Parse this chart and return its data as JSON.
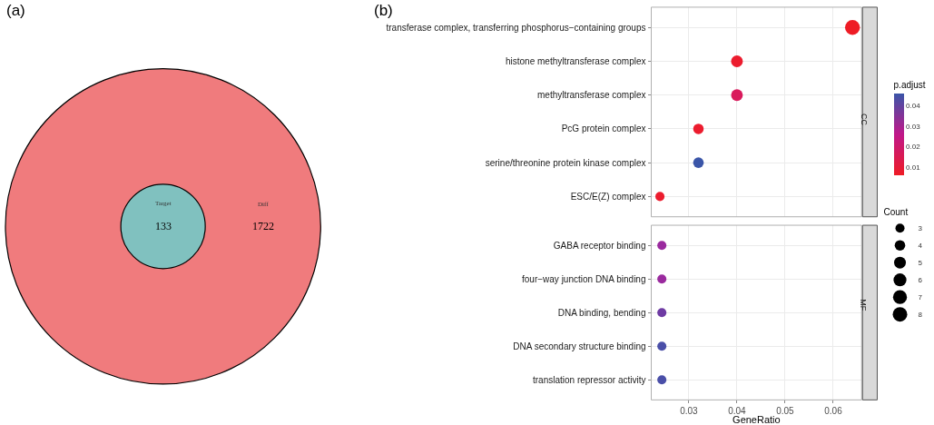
{
  "chart_data": [
    {
      "type": "other",
      "title": "(a)",
      "categories": [
        "Diff",
        "Target"
      ],
      "values": [
        1722,
        133
      ],
      "colors": [
        "#f07b7d",
        "#80c1bf"
      ],
      "data_labels": true
    },
    {
      "type": "bubble",
      "title": "(b)",
      "orientation": "horizontal",
      "categories": [
        "transferase complex, transferring phosphorus−containing groups",
        "histone methyltransferase complex",
        "methyltransferase complex",
        "PcG protein complex",
        "serine/threonine protein kinase complex",
        "ESC/E(Z) complex",
        "GABA receptor binding",
        "four−way junction DNA binding",
        "DNA binding, bending",
        "DNA secondary structure binding",
        "translation repressor activity"
      ],
      "series": [
        {
          "name": "CC",
          "values": [
            0.064,
            0.04,
            0.04,
            0.032,
            0.032,
            0.024,
            null,
            null,
            null,
            null,
            null
          ],
          "sizes": [
            8,
            5,
            5,
            4,
            4,
            3,
            null,
            null,
            null,
            null,
            null
          ],
          "colors": [
            "#ee1c25",
            "#ec1c2e",
            "#d91a5c",
            "#ec1c2e",
            "#3a55a8",
            "#ec1c2e",
            null,
            null,
            null,
            null,
            null
          ]
        },
        {
          "name": "MF",
          "values": [
            null,
            null,
            null,
            null,
            null,
            null,
            0.0244,
            0.0244,
            0.0244,
            0.0244,
            0.0244
          ],
          "sizes": [
            null,
            null,
            null,
            null,
            null,
            null,
            3,
            3,
            3,
            3,
            3
          ],
          "colors": [
            null,
            null,
            null,
            null,
            null,
            null,
            "#9a2a9e",
            "#9a2a9e",
            "#6e3ba3",
            "#4a4fa8",
            "#4a4fa8"
          ]
        }
      ],
      "clabel": "p.adjust",
      "clim": [
        0.006,
        0.046
      ],
      "cticks": [
        0.01,
        0.02,
        0.03,
        0.04
      ],
      "xlim": [
        0.0222,
        0.0659
      ],
      "xticks": [
        0.03,
        0.04,
        0.05,
        0.06
      ],
      "xlabel": "GeneRatio",
      "grid": true,
      "size_legend": [
        3,
        4,
        5,
        6,
        7,
        8
      ],
      "legend_title": "Count"
    }
  ]
}
